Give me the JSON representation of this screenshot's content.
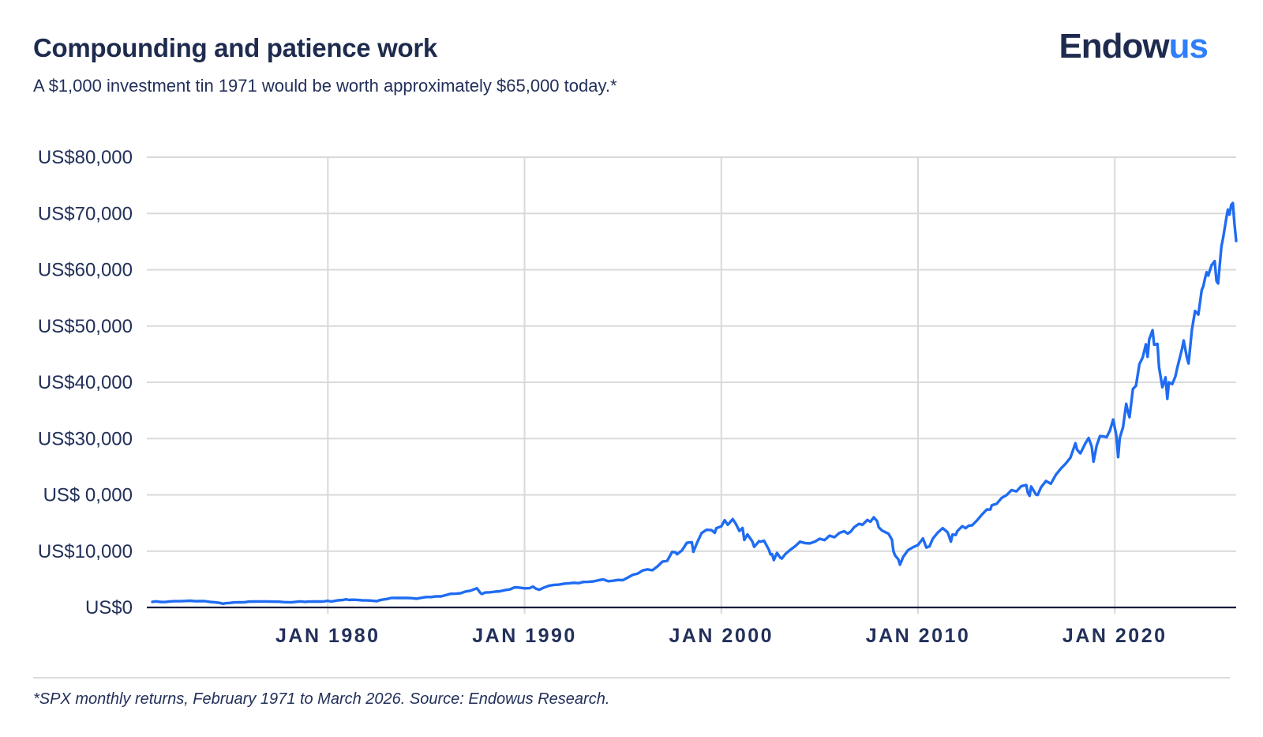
{
  "header": {
    "title": "Compounding and patience work",
    "subtitle": "A $1,000 investment tin 1971 would be worth approximately $65,000 today.*"
  },
  "logo": {
    "primary": "Endow",
    "accent": "us",
    "primary_color": "#1e2b4e",
    "accent_color": "#2e7ff8"
  },
  "footnote": "*SPX monthly returns, February 1971 to March 2026. Source: Endowus Research.",
  "chart_data": {
    "type": "line",
    "title": "Growth of a $1,000 investment in SPX, Feb 1971 to Mar 2026",
    "xlabel": "",
    "ylabel": "",
    "x_domain": [
      1971.08,
      2026.17
    ],
    "y_domain": [
      0,
      80000
    ],
    "grid": true,
    "legend": false,
    "line_color": "#1f6cf2",
    "grid_color": "#d9d9d9",
    "axis_color": "#101d3d",
    "label_color": "#22305a",
    "y_ticks": [
      {
        "value": 80000,
        "label": "US$80,000"
      },
      {
        "value": 70000,
        "label": "US$70,000"
      },
      {
        "value": 60000,
        "label": "US$60,000"
      },
      {
        "value": 50000,
        "label": "US$50,000"
      },
      {
        "value": 40000,
        "label": "US$40,000"
      },
      {
        "value": 30000,
        "label": "US$30,000"
      },
      {
        "value": 20000,
        "label": "US$ 0,000"
      },
      {
        "value": 10000,
        "label": "US$10,000"
      },
      {
        "value": 0,
        "label": "US$0"
      }
    ],
    "x_ticks": [
      {
        "value": 1980,
        "label": "JAN 1980"
      },
      {
        "value": 1990,
        "label": "JAN 1990"
      },
      {
        "value": 2000,
        "label": "JAN 2000"
      },
      {
        "value": 2010,
        "label": "JAN 2010"
      },
      {
        "value": 2020,
        "label": "JAN 2020"
      }
    ],
    "series": [
      {
        "name": "investment-value-usd",
        "points": [
          [
            1971.08,
            1000
          ],
          [
            1971.25,
            1074
          ],
          [
            1971.5,
            988
          ],
          [
            1971.75,
            974
          ],
          [
            1972.0,
            1074
          ],
          [
            1972.25,
            1113
          ],
          [
            1972.5,
            1110
          ],
          [
            1972.75,
            1153
          ],
          [
            1973.0,
            1199
          ],
          [
            1973.25,
            1106
          ],
          [
            1973.5,
            1119
          ],
          [
            1973.75,
            1119
          ],
          [
            1974.0,
            998
          ],
          [
            1974.25,
            933
          ],
          [
            1974.5,
            820
          ],
          [
            1974.67,
            657
          ],
          [
            1974.83,
            764
          ],
          [
            1975.0,
            796
          ],
          [
            1975.25,
            902
          ],
          [
            1975.5,
            917
          ],
          [
            1975.75,
            920
          ],
          [
            1976.0,
            1042
          ],
          [
            1976.25,
            1051
          ],
          [
            1976.5,
            1069
          ],
          [
            1976.75,
            1064
          ],
          [
            1977.0,
            1055
          ],
          [
            1977.25,
            1018
          ],
          [
            1977.5,
            1022
          ],
          [
            1977.75,
            954
          ],
          [
            1978.0,
            923
          ],
          [
            1978.17,
            922
          ],
          [
            1978.5,
            1041
          ],
          [
            1978.67,
            1060
          ],
          [
            1978.83,
            979
          ],
          [
            1979.0,
            1033
          ],
          [
            1979.25,
            1052
          ],
          [
            1979.5,
            1073
          ],
          [
            1979.75,
            1052
          ],
          [
            1980.0,
            1180
          ],
          [
            1980.17,
            1055
          ],
          [
            1980.33,
            1150
          ],
          [
            1980.5,
            1258
          ],
          [
            1980.75,
            1318
          ],
          [
            1980.92,
            1452
          ],
          [
            1981.08,
            1339
          ],
          [
            1981.25,
            1373
          ],
          [
            1981.5,
            1353
          ],
          [
            1981.75,
            1260
          ],
          [
            1982.0,
            1245
          ],
          [
            1982.25,
            1203
          ],
          [
            1982.5,
            1107
          ],
          [
            1982.58,
            1235
          ],
          [
            1982.75,
            1382
          ],
          [
            1983.0,
            1502
          ],
          [
            1983.25,
            1699
          ],
          [
            1983.5,
            1680
          ],
          [
            1983.75,
            1690
          ],
          [
            1984.0,
            1689
          ],
          [
            1984.25,
            1654
          ],
          [
            1984.5,
            1557
          ],
          [
            1984.75,
            1717
          ],
          [
            1985.0,
            1857
          ],
          [
            1985.25,
            1859
          ],
          [
            1985.5,
            1973
          ],
          [
            1985.75,
            1962
          ],
          [
            1986.0,
            2189
          ],
          [
            1986.25,
            2434
          ],
          [
            1986.5,
            2441
          ],
          [
            1986.75,
            2522
          ],
          [
            1987.0,
            2833
          ],
          [
            1987.25,
            2981
          ],
          [
            1987.58,
            3409
          ],
          [
            1987.75,
            2602
          ],
          [
            1987.83,
            2380
          ],
          [
            1988.0,
            2657
          ],
          [
            1988.25,
            2701
          ],
          [
            1988.5,
            2812
          ],
          [
            1988.75,
            2883
          ],
          [
            1989.0,
            3075
          ],
          [
            1989.25,
            3200
          ],
          [
            1989.5,
            3577
          ],
          [
            1989.75,
            3518
          ],
          [
            1990.0,
            3401
          ],
          [
            1990.25,
            3419
          ],
          [
            1990.42,
            3700
          ],
          [
            1990.58,
            3334
          ],
          [
            1990.75,
            3142
          ],
          [
            1991.0,
            3555
          ],
          [
            1991.25,
            3880
          ],
          [
            1991.5,
            4008
          ],
          [
            1991.75,
            4056
          ],
          [
            1992.0,
            4225
          ],
          [
            1992.25,
            4289
          ],
          [
            1992.5,
            4385
          ],
          [
            1992.75,
            4327
          ],
          [
            1993.0,
            4535
          ],
          [
            1993.25,
            4550
          ],
          [
            1993.5,
            4632
          ],
          [
            1993.75,
            4835
          ],
          [
            1994.0,
            4978
          ],
          [
            1994.25,
            4661
          ],
          [
            1994.5,
            4737
          ],
          [
            1994.75,
            4882
          ],
          [
            1995.0,
            4862
          ],
          [
            1995.25,
            5320
          ],
          [
            1995.5,
            5810
          ],
          [
            1995.75,
            6010
          ],
          [
            1996.0,
            6574
          ],
          [
            1996.25,
            6761
          ],
          [
            1996.5,
            6614
          ],
          [
            1996.75,
            7290
          ],
          [
            1997.0,
            8126
          ],
          [
            1997.25,
            8283
          ],
          [
            1997.5,
            9864
          ],
          [
            1997.67,
            9791
          ],
          [
            1997.75,
            9454
          ],
          [
            1998.0,
            10132
          ],
          [
            1998.25,
            11491
          ],
          [
            1998.5,
            11583
          ],
          [
            1998.58,
            9894
          ],
          [
            1998.75,
            11356
          ],
          [
            1999.0,
            13227
          ],
          [
            1999.25,
            13801
          ],
          [
            1999.5,
            13734
          ],
          [
            1999.67,
            13258
          ],
          [
            1999.75,
            14088
          ],
          [
            2000.0,
            14414
          ],
          [
            2000.17,
            15490
          ],
          [
            2000.33,
            14684
          ],
          [
            2000.58,
            15688
          ],
          [
            2000.75,
            14774
          ],
          [
            2000.92,
            13591
          ],
          [
            2001.08,
            14119
          ],
          [
            2001.17,
            11993
          ],
          [
            2001.33,
            12980
          ],
          [
            2001.58,
            11717
          ],
          [
            2001.67,
            10759
          ],
          [
            2001.92,
            11777
          ],
          [
            2002.0,
            11682
          ],
          [
            2002.17,
            11859
          ],
          [
            2002.42,
            10231
          ],
          [
            2002.5,
            9423
          ],
          [
            2002.58,
            9468
          ],
          [
            2002.67,
            8427
          ],
          [
            2002.83,
            9678
          ],
          [
            2003.0,
            8845
          ],
          [
            2003.08,
            8694
          ],
          [
            2003.25,
            9477
          ],
          [
            2003.5,
            10236
          ],
          [
            2003.75,
            10861
          ],
          [
            2004.0,
            11691
          ],
          [
            2004.25,
            11445
          ],
          [
            2004.5,
            11387
          ],
          [
            2004.75,
            11682
          ],
          [
            2005.0,
            12210
          ],
          [
            2005.25,
            11957
          ],
          [
            2005.5,
            12757
          ],
          [
            2005.75,
            12476
          ],
          [
            2006.0,
            13231
          ],
          [
            2006.25,
            13547
          ],
          [
            2006.42,
            13129
          ],
          [
            2006.58,
            13476
          ],
          [
            2006.75,
            14242
          ],
          [
            2007.0,
            14866
          ],
          [
            2007.17,
            14686
          ],
          [
            2007.42,
            15539
          ],
          [
            2007.58,
            15235
          ],
          [
            2007.75,
            16014
          ],
          [
            2007.92,
            15309
          ],
          [
            2008.0,
            14249
          ],
          [
            2008.17,
            13672
          ],
          [
            2008.42,
            13230
          ],
          [
            2008.5,
            13100
          ],
          [
            2008.67,
            12056
          ],
          [
            2008.75,
            10013
          ],
          [
            2008.83,
            9264
          ],
          [
            2009.0,
            8536
          ],
          [
            2009.08,
            7598
          ],
          [
            2009.25,
            9022
          ],
          [
            2009.5,
            10207
          ],
          [
            2009.75,
            10710
          ],
          [
            2010.0,
            11100
          ],
          [
            2010.25,
            12266
          ],
          [
            2010.42,
            10654
          ],
          [
            2010.58,
            10846
          ],
          [
            2010.75,
            12231
          ],
          [
            2011.0,
            13294
          ],
          [
            2011.25,
            14095
          ],
          [
            2011.5,
            13357
          ],
          [
            2011.58,
            12599
          ],
          [
            2011.67,
            11695
          ],
          [
            2011.75,
            12955
          ],
          [
            2011.92,
            12889
          ],
          [
            2012.0,
            13566
          ],
          [
            2012.25,
            14449
          ],
          [
            2012.42,
            14080
          ],
          [
            2012.58,
            14539
          ],
          [
            2012.75,
            14597
          ],
          [
            2013.0,
            15485
          ],
          [
            2013.25,
            16513
          ],
          [
            2013.5,
            17424
          ],
          [
            2013.67,
            17381
          ],
          [
            2013.75,
            18156
          ],
          [
            2014.0,
            18425
          ],
          [
            2014.25,
            19473
          ],
          [
            2014.5,
            19956
          ],
          [
            2014.75,
            20859
          ],
          [
            2015.0,
            20621
          ],
          [
            2015.25,
            21556
          ],
          [
            2015.5,
            21745
          ],
          [
            2015.58,
            20384
          ],
          [
            2015.67,
            19845
          ],
          [
            2015.75,
            21492
          ],
          [
            2016.0,
            20054
          ],
          [
            2016.08,
            19971
          ],
          [
            2016.25,
            21347
          ],
          [
            2016.5,
            22466
          ],
          [
            2016.75,
            21976
          ],
          [
            2017.0,
            23554
          ],
          [
            2017.25,
            24643
          ],
          [
            2017.5,
            25533
          ],
          [
            2017.75,
            26618
          ],
          [
            2018.0,
            29187
          ],
          [
            2018.08,
            28050
          ],
          [
            2018.25,
            27370
          ],
          [
            2018.5,
            29110
          ],
          [
            2018.67,
            30119
          ],
          [
            2018.83,
            28529
          ],
          [
            2018.92,
            25911
          ],
          [
            2019.08,
            28781
          ],
          [
            2019.25,
            30448
          ],
          [
            2019.42,
            30406
          ],
          [
            2019.58,
            30248
          ],
          [
            2019.75,
            31396
          ],
          [
            2019.92,
            33394
          ],
          [
            2020.08,
            30535
          ],
          [
            2020.17,
            26714
          ],
          [
            2020.25,
            30103
          ],
          [
            2020.42,
            32045
          ],
          [
            2020.58,
            36179
          ],
          [
            2020.67,
            34760
          ],
          [
            2020.75,
            33798
          ],
          [
            2020.92,
            38823
          ],
          [
            2021.08,
            39392
          ],
          [
            2021.25,
            43217
          ],
          [
            2021.42,
            44419
          ],
          [
            2021.58,
            46747
          ],
          [
            2021.67,
            44523
          ],
          [
            2021.75,
            47601
          ],
          [
            2021.92,
            49263
          ],
          [
            2022.0,
            46673
          ],
          [
            2022.17,
            46826
          ],
          [
            2022.25,
            42707
          ],
          [
            2022.42,
            39125
          ],
          [
            2022.58,
            40879
          ],
          [
            2022.67,
            37061
          ],
          [
            2022.75,
            40021
          ],
          [
            2022.92,
            39685
          ],
          [
            2023.08,
            41035
          ],
          [
            2023.17,
            42474
          ],
          [
            2023.42,
            46000
          ],
          [
            2023.5,
            47432
          ],
          [
            2023.67,
            44322
          ],
          [
            2023.75,
            43348
          ],
          [
            2023.92,
            49301
          ],
          [
            2024.08,
            52675
          ],
          [
            2024.25,
            52049
          ],
          [
            2024.42,
            56440
          ],
          [
            2024.5,
            57078
          ],
          [
            2024.58,
            58382
          ],
          [
            2024.67,
            59561
          ],
          [
            2024.75,
            58972
          ],
          [
            2024.92,
            60793
          ],
          [
            2025.08,
            61546
          ],
          [
            2025.17,
            58004
          ],
          [
            2025.25,
            57562
          ],
          [
            2025.42,
            64134
          ],
          [
            2025.5,
            65524
          ],
          [
            2025.67,
            69132
          ],
          [
            2025.75,
            70700
          ],
          [
            2025.83,
            69800
          ],
          [
            2025.92,
            71530
          ],
          [
            2026.0,
            71840
          ],
          [
            2026.08,
            68220
          ],
          [
            2026.17,
            65120
          ]
        ]
      }
    ]
  }
}
